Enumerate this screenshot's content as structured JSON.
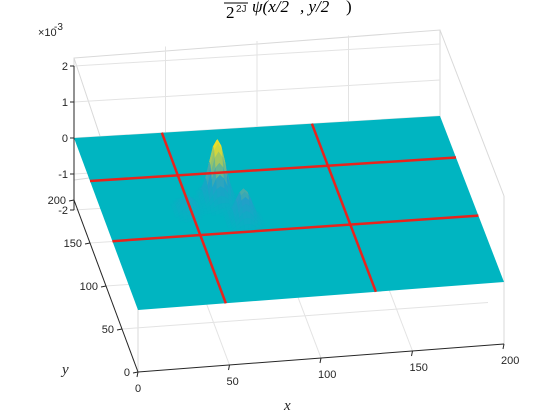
{
  "chart_data": {
    "type": "surface",
    "title_prefix": "2",
    "title_exp": "2J",
    "title_main": "ψ(x/2",
    "title_rest": ", y/2",
    "title_end": ")",
    "xlabel": "x",
    "ylabel": "y",
    "z_exponent_base": "×10",
    "z_exponent_power": "-3",
    "xlim": [
      0,
      200
    ],
    "ylim": [
      0,
      200
    ],
    "zlim": [
      -0.002,
      0.002
    ],
    "x_ticks": [
      "0",
      "50",
      "100",
      "150",
      "200"
    ],
    "y_ticks": [
      "0",
      "50",
      "100",
      "150",
      "200"
    ],
    "z_ticks": [
      "-2",
      "-1",
      "0",
      "1",
      "2"
    ],
    "grid": true,
    "surface_color": "#00B5C1",
    "peak_color_high": "#F9E21F",
    "peak_color_mid": "#21A0C8",
    "grid_line_color": "#E8231C",
    "red_grid_lines_x": [
      48,
      130
    ],
    "red_grid_lines_y": [
      80,
      150
    ],
    "peaks": [
      {
        "x": 64,
        "y": 118,
        "z": 0.0017
      },
      {
        "x": 74,
        "y": 92,
        "z": 0.0009
      },
      {
        "x": 46,
        "y": 108,
        "z": 0.0004
      }
    ]
  }
}
